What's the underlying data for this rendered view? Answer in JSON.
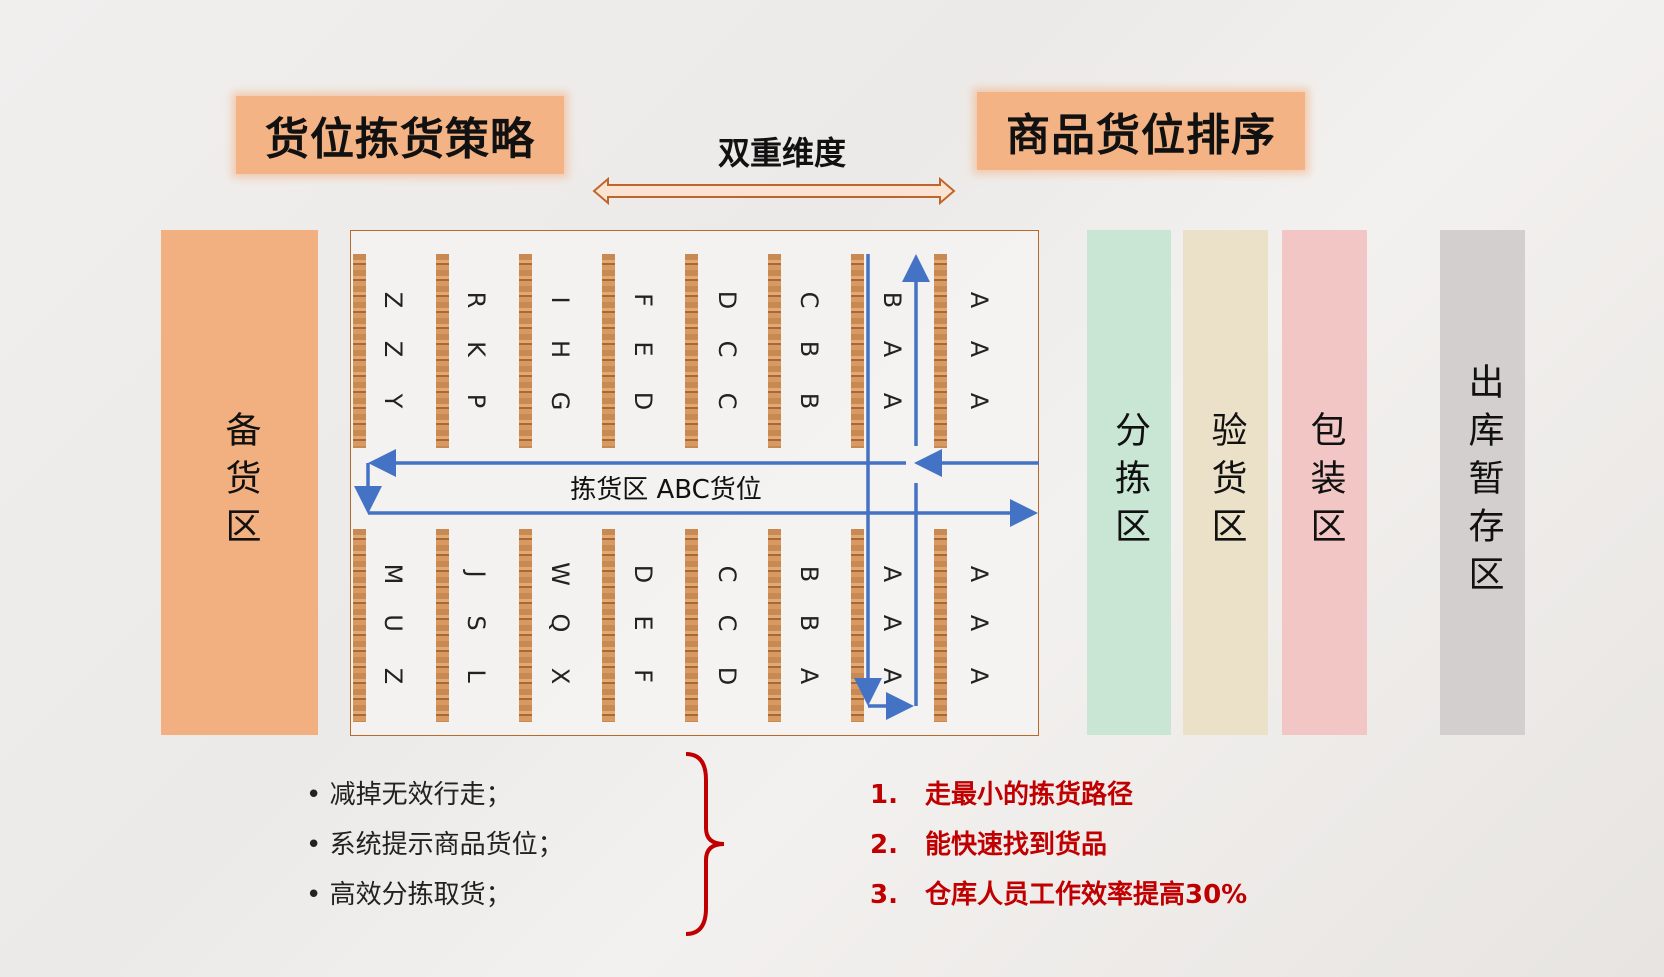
{
  "titles": {
    "left": "货位拣货策略",
    "right": "商品货位排序",
    "middle": "双重维度"
  },
  "zones": {
    "reserve": "备货区",
    "sorting": "分拣区",
    "inspection": "验货区",
    "packing": "包装区",
    "outbound": "出库暂存区"
  },
  "picking_area": {
    "label": "拣货区  ABC货位",
    "top_columns": [
      [
        "Z",
        "Z",
        "Y"
      ],
      [
        "R",
        "K",
        "P"
      ],
      [
        "I",
        "H",
        "G"
      ],
      [
        "F",
        "E",
        "D"
      ],
      [
        "D",
        "C",
        "C"
      ],
      [
        "C",
        "B",
        "B"
      ],
      [
        "B",
        "A",
        "A"
      ],
      [
        "A",
        "A",
        "A"
      ]
    ],
    "bottom_columns": [
      [
        "M",
        "U",
        "Z"
      ],
      [
        "J",
        "S",
        "L"
      ],
      [
        "W",
        "Q",
        "X"
      ],
      [
        "D",
        "E",
        "F"
      ],
      [
        "C",
        "C",
        "D"
      ],
      [
        "B",
        "B",
        "A"
      ],
      [
        "A",
        "A",
        "A"
      ],
      [
        "A",
        "A",
        "A"
      ]
    ]
  },
  "bullets": [
    "减掉无效行走；",
    "系统提示商品货位；",
    "高效分拣取货；"
  ],
  "goals": [
    {
      "num": "1.",
      "text": "走最小的拣货路径"
    },
    {
      "num": "2.",
      "text": "能快速找到货品"
    },
    {
      "num": "3.",
      "text": "仓库人员工作效率提高30%"
    }
  ],
  "colors": {
    "orange": "#f3b385",
    "green": "#c9e6d5",
    "beige": "#ebe1c8",
    "pink": "#f3c6c6",
    "gray": "#d2cfce",
    "arrow_blue": "#4472c4",
    "red": "#c00000"
  }
}
